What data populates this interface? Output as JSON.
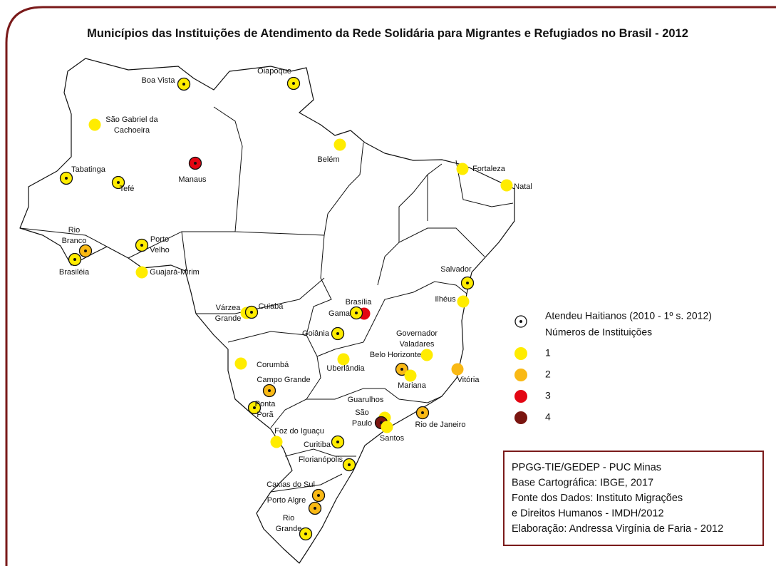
{
  "title": "Municípios das Instituições de Atendimento da Rede Solidária para Migrantes e Refugiados no Brasil - 2012",
  "cities": [
    {
      "label": [
        "Boa Vista"
      ],
      "count": 1,
      "haitian": true
    },
    {
      "label": [
        "Oiapoque"
      ],
      "count": 1,
      "haitian": true
    },
    {
      "label": [
        "São Gabriel da",
        "Cachoeira"
      ],
      "count": 1,
      "haitian": false
    },
    {
      "label": [
        "Belém"
      ],
      "count": 1,
      "haitian": false
    },
    {
      "label": [
        "Manaus"
      ],
      "count": 3,
      "haitian": true
    },
    {
      "label": [
        "Tabatinga"
      ],
      "count": 1,
      "haitian": true
    },
    {
      "label": [
        "Tefé"
      ],
      "count": 1,
      "haitian": true
    },
    {
      "label": [
        "Fortaleza"
      ],
      "count": 1,
      "haitian": false
    },
    {
      "label": [
        "Natal"
      ],
      "count": 1,
      "haitian": false
    },
    {
      "label": [
        "Rio",
        "Branco"
      ],
      "count": 2,
      "haitian": true
    },
    {
      "label": [
        "Brasiléia"
      ],
      "count": 1,
      "haitian": true
    },
    {
      "label": [
        "Porto",
        "Velho"
      ],
      "count": 1,
      "haitian": true
    },
    {
      "label": [
        "Guajará-Mirim"
      ],
      "count": 1,
      "haitian": false
    },
    {
      "label": [
        "Salvador"
      ],
      "count": 1,
      "haitian": true
    },
    {
      "label": [
        "Ilhéus"
      ],
      "count": 1,
      "haitian": false
    },
    {
      "label": [
        "Várzea",
        "Grande"
      ],
      "count": 1,
      "haitian": false
    },
    {
      "label": [
        "Cuiabá"
      ],
      "count": 1,
      "haitian": true
    },
    {
      "label": [
        "Brasília"
      ],
      "count": 3,
      "haitian": false
    },
    {
      "label": [
        "Gama"
      ],
      "count": 1,
      "haitian": true
    },
    {
      "label": [
        "Goiânia"
      ],
      "count": 1,
      "haitian": true
    },
    {
      "label": [
        "Governador",
        "Valadares"
      ],
      "count": 1,
      "haitian": false
    },
    {
      "label": [
        "Uberlândia"
      ],
      "count": 1,
      "haitian": false
    },
    {
      "label": [
        "Belo Horizonte"
      ],
      "count": 2,
      "haitian": true
    },
    {
      "label": [
        "Mariana"
      ],
      "count": 1,
      "haitian": false
    },
    {
      "label": [
        "Vitória"
      ],
      "count": 2,
      "haitian": false
    },
    {
      "label": [
        "Corumbá"
      ],
      "count": 1,
      "haitian": false
    },
    {
      "label": [
        "Campo Grande"
      ],
      "count": 2,
      "haitian": true
    },
    {
      "label": [
        "Ponta",
        "Porã"
      ],
      "count": 1,
      "haitian": true
    },
    {
      "label": [
        "Guarulhos"
      ],
      "count": 1,
      "haitian": false
    },
    {
      "label": [
        "São",
        "Paulo"
      ],
      "count": 4,
      "haitian": true
    },
    {
      "label": [
        "Santos"
      ],
      "count": 1,
      "haitian": false
    },
    {
      "label": [
        "Rio de Janeiro"
      ],
      "count": 2,
      "haitian": true
    },
    {
      "label": [
        "Foz do Iguaçu"
      ],
      "count": 1,
      "haitian": false
    },
    {
      "label": [
        "Curitiba"
      ],
      "count": 1,
      "haitian": true
    },
    {
      "label": [
        "Florianópolis"
      ],
      "count": 1,
      "haitian": true
    },
    {
      "label": [
        "Caxias do Sul"
      ],
      "count": 2,
      "haitian": true
    },
    {
      "label": [
        "Porto Algre"
      ],
      "count": 2,
      "haitian": true
    },
    {
      "label": [
        "Rio",
        "Grande"
      ],
      "count": 1,
      "haitian": true
    }
  ],
  "legend": {
    "haitian": "Atendeu Haitianos (2010 - 1º s. 2012)",
    "title": "Números de Instituições",
    "levels": [
      {
        "value": 1,
        "color": "#ffec00"
      },
      {
        "value": 2,
        "color": "#f9b915"
      },
      {
        "value": 3,
        "color": "#e30613"
      },
      {
        "value": 4,
        "color": "#7a1510"
      }
    ]
  },
  "credits": [
    "PPGG-TIE/GEDEP - PUC Minas",
    "Base Cartográfica: IBGE, 2017",
    "Fonte dos Dados: Instituto Migrações",
    "e Direitos Humanos - IMDH/2012",
    "Elaboração: Andressa Virgínia de Faria - 2012"
  ]
}
